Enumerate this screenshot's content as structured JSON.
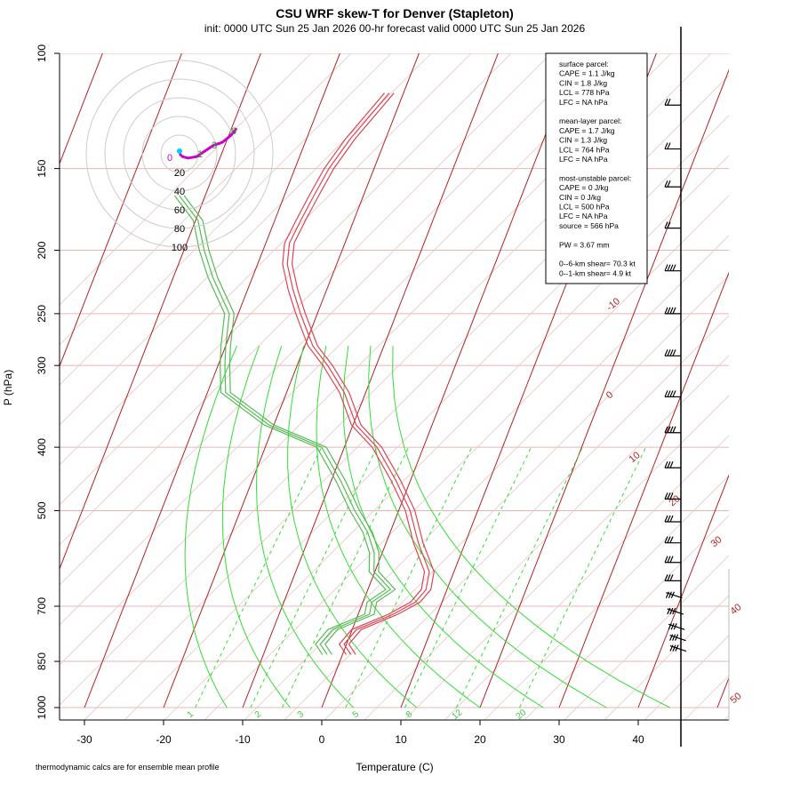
{
  "title": "CSU WRF skew-T for Denver (Stapleton)",
  "subtitle": "init: 0000 UTC Sun 25 Jan 2026    00-hr forecast valid 0000 UTC Sun 25 Jan 2026",
  "footnote": "thermodynamic calcs are for ensemble mean profile",
  "colors": {
    "isotherm": "#b22222",
    "pressure_grid": "#e8b4b4",
    "dry_adiabat_faint": "#e8c8c8",
    "mixing_ratio": "#33dd33",
    "temperature": "#dd4455",
    "dewpoint": "#55bb55",
    "hodo_trace": "#cc00cc"
  },
  "info_box": {
    "lines": [
      "surface parcel:",
      "CAPE = 1.1 J/kg",
      "CIN = 1.8 J/kg",
      "LCL = 778 hPa",
      "LFC = NA hPa",
      "",
      "mean-layer parcel:",
      "CAPE = 1.7 J/kg",
      "CIN = 1.3 J/kg",
      "LCL = 764 hPa",
      "LFC = NA hPa",
      "",
      "most-unstable parcel:",
      "CAPE = 0 J/kg",
      "CIN = 0 J/kg",
      "LCL = 500 hPa",
      "LFC = NA hPa",
      "source = 566 hPa",
      "",
      "PW =  3.67 mm",
      "",
      "0--6-km shear= 70.3 kt",
      "0--1-km shear= 4.9 kt"
    ]
  },
  "hodograph": {
    "ring_labels": [
      "20",
      "40",
      "60",
      "80",
      "100"
    ],
    "ring_values": [
      20,
      40,
      60,
      80,
      100
    ],
    "center_marker_color": "#00ccff",
    "origin_label": "0",
    "height_labels": [
      "1",
      "3",
      "6"
    ],
    "trace_uv": [
      [
        0,
        0
      ],
      [
        2,
        -2
      ],
      [
        6,
        -3
      ],
      [
        12,
        -2
      ],
      [
        18,
        2
      ],
      [
        24,
        6
      ],
      [
        30,
        8
      ],
      [
        35,
        12
      ],
      [
        38,
        15
      ],
      [
        40,
        18
      ]
    ]
  },
  "chart_data": {
    "type": "line",
    "title": "CSU WRF skew-T for Denver (Stapleton)",
    "xlabel": "Temperature (C)",
    "ylabel": "P (hPa)",
    "xlim": [
      -33,
      51
    ],
    "ylim": [
      1000,
      100
    ],
    "y_scale": "log",
    "x_ticks": [
      "-30",
      "-20",
      "-10",
      "0",
      "10",
      "20",
      "30",
      "40"
    ],
    "x_tick_values": [
      -30,
      -20,
      -10,
      0,
      10,
      20,
      30,
      40
    ],
    "y_ticks": [
      "100",
      "150",
      "200",
      "250",
      "300",
      "400",
      "500",
      "700",
      "850",
      "1000"
    ],
    "y_tick_values": [
      100,
      150,
      200,
      250,
      300,
      400,
      500,
      700,
      850,
      1000
    ],
    "isotherm_labels": [
      "-10",
      "0",
      "10",
      "20",
      "30",
      "40",
      "50"
    ],
    "isotherm_label_values": [
      -10,
      0,
      10,
      20,
      30,
      40,
      50
    ],
    "mixing_ratio_labels": [
      "1",
      "2",
      "3",
      "5",
      "8",
      "12",
      "20"
    ],
    "mixing_ratio_values": [
      1,
      2,
      3,
      5,
      8,
      12,
      20
    ],
    "series": [
      {
        "role": "temperature",
        "p": [
          830,
          800,
          760,
          720,
          690,
          660,
          620,
          560,
          500,
          450,
          400,
          370,
          330,
          300,
          280,
          250,
          230,
          210,
          195,
          180,
          165,
          150,
          135,
          122,
          115
        ],
        "t": [
          -2.0,
          -4.0,
          -4.0,
          -1.0,
          0.5,
          0.5,
          -1.0,
          -5.5,
          -10.0,
          -15.0,
          -21.0,
          -26.0,
          -31.0,
          -36.0,
          -40.0,
          -45.0,
          -48.5,
          -52.0,
          -54.0,
          -55.0,
          -56.0,
          -57.0,
          -57.5,
          -57.5,
          -57.5
        ]
      },
      {
        "role": "dewpoint",
        "p": [
          830,
          800,
          760,
          720,
          690,
          660,
          620,
          580,
          540,
          500,
          450,
          400,
          370,
          330,
          300,
          280,
          250,
          220,
          200,
          180,
          165
        ],
        "t": [
          -5.0,
          -7.0,
          -7.0,
          -4.0,
          -5.0,
          -4.0,
          -8.0,
          -10.0,
          -13.0,
          -17.0,
          -22.0,
          -28.0,
          -37.0,
          -46.0,
          -49.0,
          -51.0,
          -54.0,
          -60.0,
          -64.0,
          -68.0,
          -73.0
        ]
      }
    ],
    "wind_barb_levels_hpa": [
      120,
      140,
      160,
      185,
      215,
      250,
      290,
      335,
      380,
      430,
      480,
      520,
      560,
      600,
      640,
      680,
      720,
      760,
      790,
      820
    ]
  }
}
